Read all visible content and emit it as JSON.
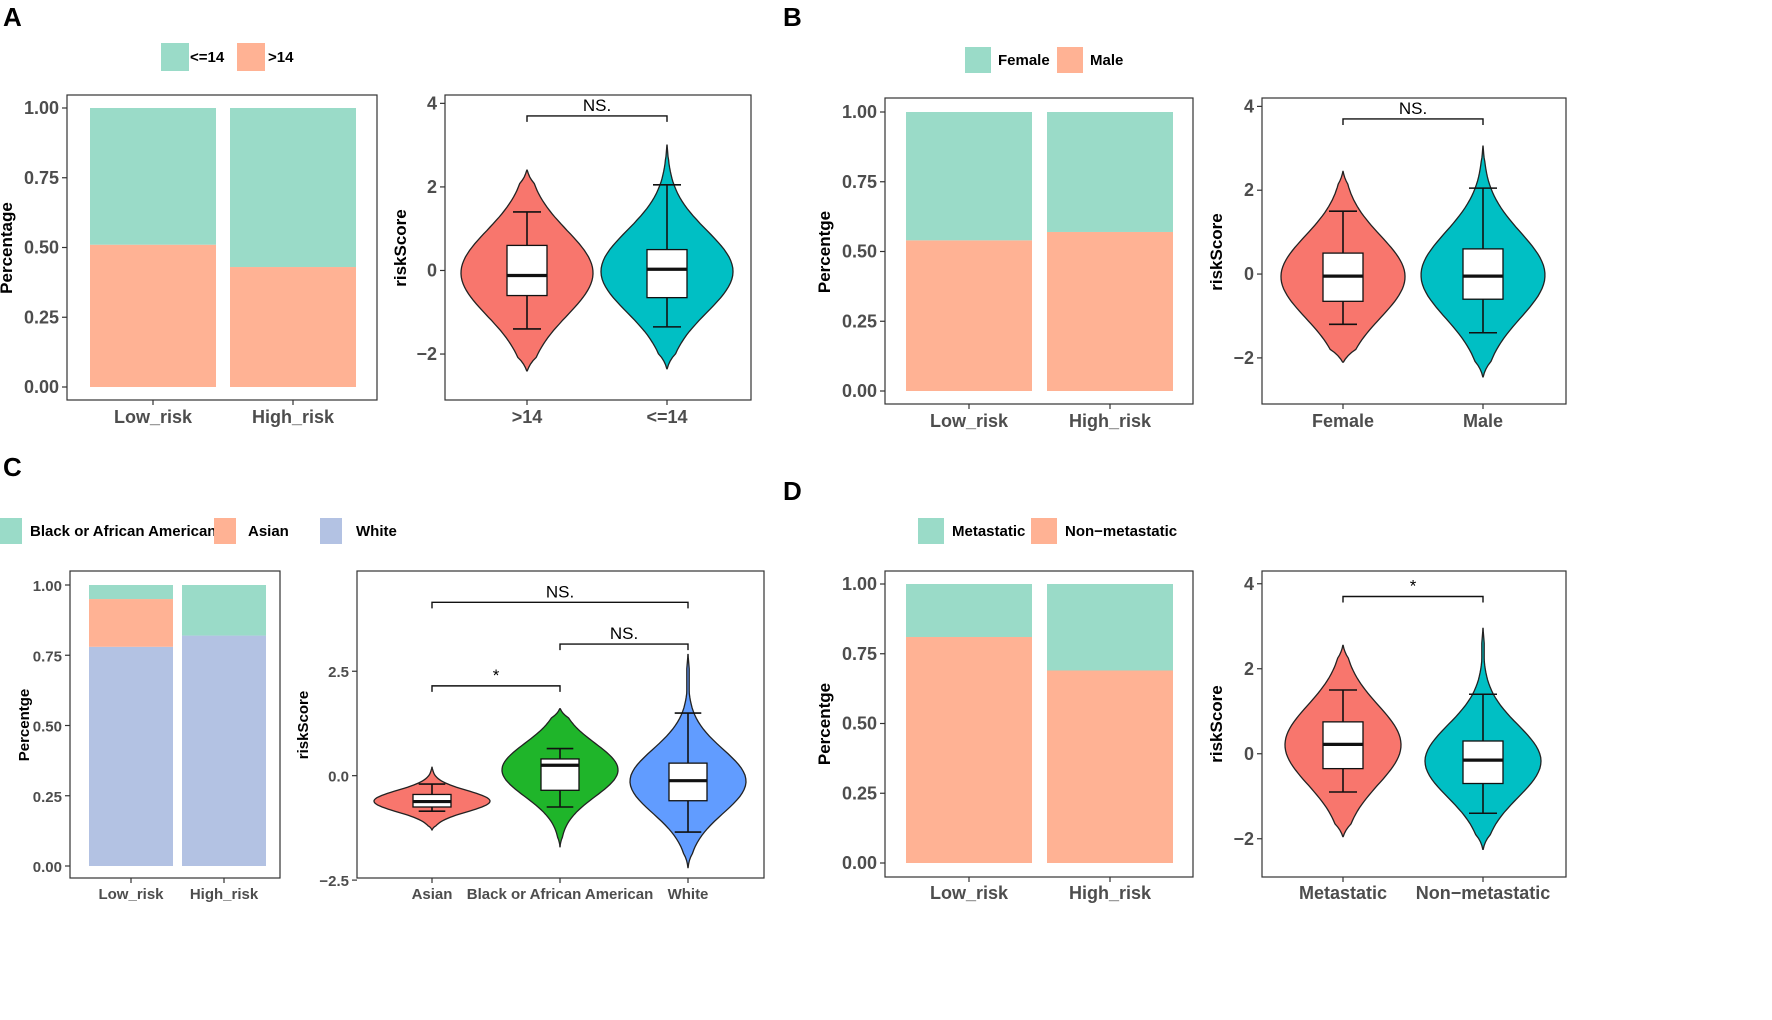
{
  "panel_labels": [
    "A",
    "B",
    "C",
    "D"
  ],
  "chart_data": [
    {
      "panel": "A",
      "type": "bar",
      "stacked": true,
      "title": "",
      "xlabel": "",
      "ylabel": "Percentage",
      "categories": [
        "Low_risk",
        "High_risk"
      ],
      "series": [
        {
          "name": ">14",
          "color": "#FFB294",
          "values": [
            0.51,
            0.43
          ]
        },
        {
          "name": "<=14",
          "color": "#9ADBC8",
          "values": [
            0.49,
            0.57
          ]
        }
      ],
      "legend": [
        "<=14",
        ">14"
      ],
      "ylim": [
        0,
        1
      ],
      "yticks": [
        "0.00",
        "0.25",
        "0.50",
        "0.75",
        "1.00"
      ]
    },
    {
      "panel": "A",
      "type": "violin",
      "xlabel": "",
      "ylabel": "riskScore",
      "categories": [
        ">14",
        "<=14"
      ],
      "colors": [
        "#F8766D",
        "#00BFC4"
      ],
      "violin_range": [
        [
          -2.4,
          2.4
        ],
        [
          -2.35,
          3.0
        ]
      ],
      "box": [
        {
          "whisker_low": -1.4,
          "q1": -0.6,
          "median": -0.12,
          "q3": 0.6,
          "whisker_high": 1.4
        },
        {
          "whisker_low": -1.35,
          "q1": -0.65,
          "median": 0.03,
          "q3": 0.5,
          "whisker_high": 2.05
        }
      ],
      "ylim": [
        -3.1,
        4.2
      ],
      "yticks": [
        -2,
        0,
        2,
        4
      ],
      "ytick_labels": [
        "−2",
        "0",
        "2",
        "4"
      ],
      "comparisons": [
        {
          "from": 0,
          "to": 1,
          "y": 3.7,
          "label": "NS."
        }
      ]
    },
    {
      "panel": "B",
      "type": "bar",
      "stacked": true,
      "title": "",
      "xlabel": "",
      "ylabel": "Percentge",
      "categories": [
        "Low_risk",
        "High_risk"
      ],
      "series": [
        {
          "name": "Male",
          "color": "#FFB294",
          "values": [
            0.54,
            0.57
          ]
        },
        {
          "name": "Female",
          "color": "#9ADBC8",
          "values": [
            0.46,
            0.43
          ]
        }
      ],
      "legend": [
        "Female",
        "Male"
      ],
      "ylim": [
        0,
        1
      ],
      "yticks": [
        "0.00",
        "0.25",
        "0.50",
        "0.75",
        "1.00"
      ]
    },
    {
      "panel": "B",
      "type": "violin",
      "xlabel": "",
      "ylabel": "riskScore",
      "categories": [
        "Female",
        "Male"
      ],
      "colors": [
        "#F8766D",
        "#00BFC4"
      ],
      "violin_range": [
        [
          -2.1,
          2.45
        ],
        [
          -2.45,
          3.05
        ]
      ],
      "box": [
        {
          "whisker_low": -1.2,
          "q1": -0.65,
          "median": -0.05,
          "q3": 0.5,
          "whisker_high": 1.5
        },
        {
          "whisker_low": -1.4,
          "q1": -0.6,
          "median": -0.05,
          "q3": 0.6,
          "whisker_high": 2.05
        }
      ],
      "ylim": [
        -3.1,
        4.2
      ],
      "yticks": [
        -2,
        0,
        2,
        4
      ],
      "ytick_labels": [
        "−2",
        "0",
        "2",
        "4"
      ],
      "comparisons": [
        {
          "from": 0,
          "to": 1,
          "y": 3.7,
          "label": "NS."
        }
      ]
    },
    {
      "panel": "C",
      "type": "bar",
      "stacked": true,
      "title": "",
      "xlabel": "",
      "ylabel": "Percentge",
      "categories": [
        "Low_risk",
        "High_risk"
      ],
      "series": [
        {
          "name": "White",
          "color": "#B3C2E3",
          "values": [
            0.78,
            0.82
          ]
        },
        {
          "name": "Asian",
          "color": "#FFB294",
          "values": [
            0.17,
            0.0
          ]
        },
        {
          "name": "Black or African American",
          "color": "#9ADBC8",
          "values": [
            0.05,
            0.18
          ]
        }
      ],
      "legend": [
        "Black or African American",
        "Asian",
        "White"
      ],
      "ylim": [
        0,
        1
      ],
      "yticks": [
        "0.00",
        "0.25",
        "0.50",
        "0.75",
        "1.00"
      ]
    },
    {
      "panel": "C",
      "type": "violin",
      "xlabel": "",
      "ylabel": "riskScore",
      "categories": [
        "Asian",
        "Black or African American",
        "White"
      ],
      "colors": [
        "#F8766D",
        "#1FB52A",
        "#619CFF"
      ],
      "violin_range": [
        [
          -1.3,
          0.2
        ],
        [
          -1.7,
          1.6
        ],
        [
          -2.2,
          2.9
        ]
      ],
      "box": [
        {
          "whisker_low": -0.85,
          "q1": -0.75,
          "median": -0.62,
          "q3": -0.45,
          "whisker_high": -0.2
        },
        {
          "whisker_low": -0.75,
          "q1": -0.35,
          "median": 0.25,
          "q3": 0.4,
          "whisker_high": 0.65
        },
        {
          "whisker_low": -1.35,
          "q1": -0.6,
          "median": -0.12,
          "q3": 0.3,
          "whisker_high": 1.5
        }
      ],
      "ylim": [
        -2.45,
        4.9
      ],
      "yticks": [
        -2.5,
        0.0,
        2.5
      ],
      "ytick_labels": [
        "−2.5",
        "0.0",
        "2.5"
      ],
      "comparisons": [
        {
          "from": 0,
          "to": 1,
          "y": 2.15,
          "label": "*"
        },
        {
          "from": 1,
          "to": 2,
          "y": 3.15,
          "label": "NS."
        },
        {
          "from": 0,
          "to": 2,
          "y": 4.15,
          "label": "NS."
        }
      ]
    },
    {
      "panel": "D",
      "type": "bar",
      "stacked": true,
      "title": "",
      "xlabel": "",
      "ylabel": "Percentge",
      "categories": [
        "Low_risk",
        "High_risk"
      ],
      "series": [
        {
          "name": "Non−metastatic",
          "color": "#FFB294",
          "values": [
            0.81,
            0.69
          ]
        },
        {
          "name": "Metastatic",
          "color": "#9ADBC8",
          "values": [
            0.19,
            0.31
          ]
        }
      ],
      "legend": [
        "Metastatic",
        "Non−metastatic"
      ],
      "ylim": [
        0,
        1
      ],
      "yticks": [
        "0.00",
        "0.25",
        "0.50",
        "0.75",
        "1.00"
      ]
    },
    {
      "panel": "D",
      "type": "violin",
      "xlabel": "",
      "ylabel": "riskScore",
      "categories": [
        "Metastatic",
        "Non−metastatic"
      ],
      "colors": [
        "#F8766D",
        "#00BFC4"
      ],
      "violin_range": [
        [
          -1.95,
          2.55
        ],
        [
          -2.25,
          2.95
        ]
      ],
      "box": [
        {
          "whisker_low": -0.9,
          "q1": -0.35,
          "median": 0.22,
          "q3": 0.75,
          "whisker_high": 1.5
        },
        {
          "whisker_low": -1.4,
          "q1": -0.7,
          "median": -0.15,
          "q3": 0.3,
          "whisker_high": 1.4
        }
      ],
      "ylim": [
        -2.9,
        4.3
      ],
      "yticks": [
        -2,
        0,
        2,
        4
      ],
      "ytick_labels": [
        "−2",
        "0",
        "2",
        "4"
      ],
      "comparisons": [
        {
          "from": 0,
          "to": 1,
          "y": 3.7,
          "label": "*"
        }
      ]
    }
  ]
}
